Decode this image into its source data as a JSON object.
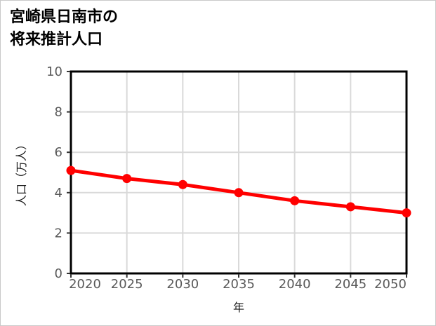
{
  "page": {
    "title_line1": "宮崎県日南市の",
    "title_line2": "将来推計人口"
  },
  "chart_data": {
    "type": "line",
    "title": "宮崎県日南市の将来推計人口",
    "xlabel": "年",
    "ylabel": "人口（万人）",
    "x": [
      2020,
      2025,
      2030,
      2035,
      2040,
      2045,
      2050
    ],
    "series": [
      {
        "name": "将来推計人口",
        "values": [
          5.1,
          4.7,
          4.4,
          4.0,
          3.6,
          3.3,
          3.0
        ]
      }
    ],
    "xticks": [
      2020,
      2025,
      2030,
      2035,
      2040,
      2045,
      2050
    ],
    "yticks": [
      0,
      2,
      4,
      6,
      8,
      10
    ],
    "xlim": [
      2020,
      2050
    ],
    "ylim": [
      0,
      10
    ],
    "grid": true,
    "legend": "none",
    "colors": {
      "line": "#ff0000",
      "marker": "#ff0000",
      "gridline": "#d9d9d9",
      "axis_frame": "#000000",
      "tick": "#333333",
      "tick_label": "#595959",
      "title": "#000000",
      "background": "#ffffff"
    }
  }
}
